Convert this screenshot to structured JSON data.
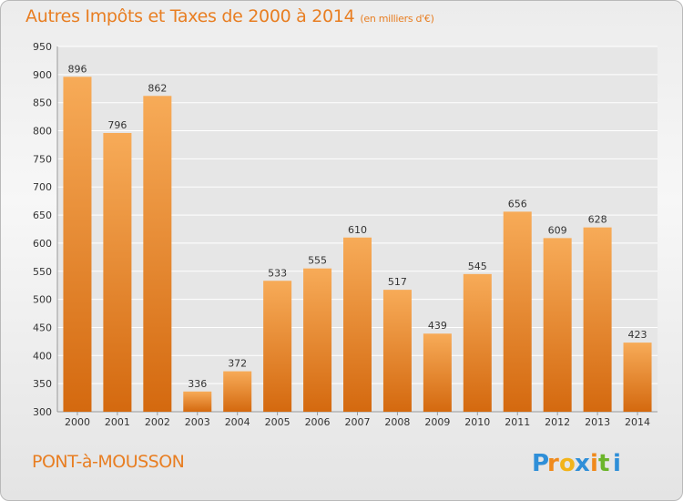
{
  "title": "Autres Impôts et Taxes de 2000 à 2014",
  "title_unit": "(en milliers d'€)",
  "city": "PONT-à-MOUSSON",
  "brand": "Proxiti",
  "colors": {
    "accent": "#e87e22",
    "bar_light": "#f5a550",
    "bar_dark": "#d96e14",
    "grid": "#ffffff",
    "axis_text": "#333333"
  },
  "chart_data": {
    "type": "bar",
    "title": "Autres Impôts et Taxes de 2000 à 2014",
    "categories": [
      "2000",
      "2001",
      "2002",
      "2003",
      "2004",
      "2005",
      "2006",
      "2007",
      "2008",
      "2009",
      "2010",
      "2011",
      "2012",
      "2013",
      "2014"
    ],
    "values": [
      896,
      796,
      862,
      336,
      372,
      533,
      555,
      610,
      517,
      439,
      545,
      656,
      609,
      628,
      423
    ],
    "ylim": [
      300,
      950
    ],
    "yticks": [
      300,
      350,
      400,
      450,
      500,
      550,
      600,
      650,
      700,
      750,
      800,
      850,
      900,
      950
    ],
    "grid": true
  }
}
